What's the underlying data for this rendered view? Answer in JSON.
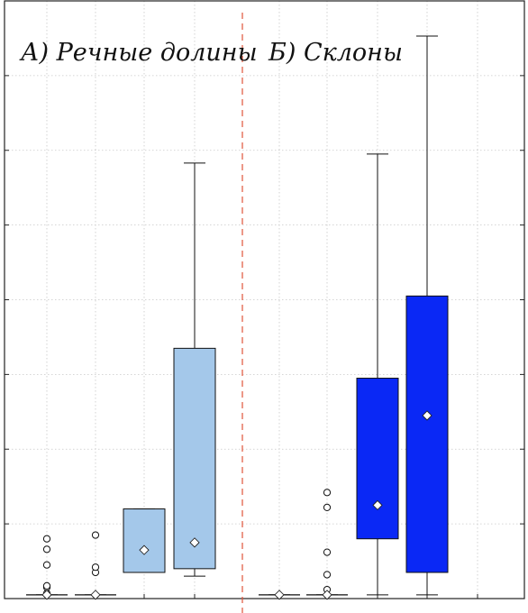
{
  "chart_data": {
    "type": "box",
    "title": "",
    "xlabel": "",
    "ylabel": "",
    "ylim": [
      0,
      8
    ],
    "yticks": [
      0,
      1,
      2,
      3,
      4,
      5,
      6,
      7,
      8
    ],
    "tick_labels_visible": false,
    "grid": true,
    "legend": "none",
    "panels": [
      {
        "title": "А) Речные долины",
        "color": "#a4c8ea",
        "categories": [
          "1",
          "2",
          "3",
          "4"
        ],
        "boxes": [
          {
            "min": 0.05,
            "q1": 0.05,
            "median": 0.05,
            "q3": 0.05,
            "max": 0.05,
            "mean": 0.05,
            "outliers": [
              0.07,
              0.15,
              0.17,
              0.45,
              0.66,
              0.8
            ]
          },
          {
            "min": 0.05,
            "q1": 0.05,
            "median": 0.05,
            "q3": 0.05,
            "max": 0.05,
            "mean": 0.05,
            "outliers": [
              0.35,
              0.42,
              0.85
            ]
          },
          {
            "min": 0.35,
            "q1": 0.35,
            "median": 0.65,
            "q3": 1.2,
            "max": 1.2,
            "mean": 0.65,
            "outliers": []
          },
          {
            "min": 0.3,
            "q1": 0.4,
            "median": 0.75,
            "q3": 3.35,
            "max": 5.83,
            "mean": 0.75,
            "outliers": []
          }
        ]
      },
      {
        "title": "Б) Склоны",
        "color": "#0a28f5",
        "categories": [
          "1",
          "2",
          "3",
          "4"
        ],
        "boxes": [
          {
            "min": 0.05,
            "q1": 0.05,
            "median": 0.05,
            "q3": 0.05,
            "max": 0.05,
            "mean": 0.05,
            "outliers": []
          },
          {
            "min": 0.05,
            "q1": 0.05,
            "median": 0.05,
            "q3": 0.05,
            "max": 0.05,
            "mean": 0.05,
            "outliers": [
              0.12,
              0.32,
              0.62,
              1.22,
              1.42
            ]
          },
          {
            "min": 0.05,
            "q1": 0.8,
            "median": 1.25,
            "q3": 2.95,
            "max": 5.95,
            "mean": 1.25,
            "outliers": []
          },
          {
            "min": 0.05,
            "q1": 0.35,
            "median": 2.45,
            "q3": 4.05,
            "max": 7.53,
            "mean": 2.45,
            "outliers": []
          }
        ]
      }
    ]
  }
}
